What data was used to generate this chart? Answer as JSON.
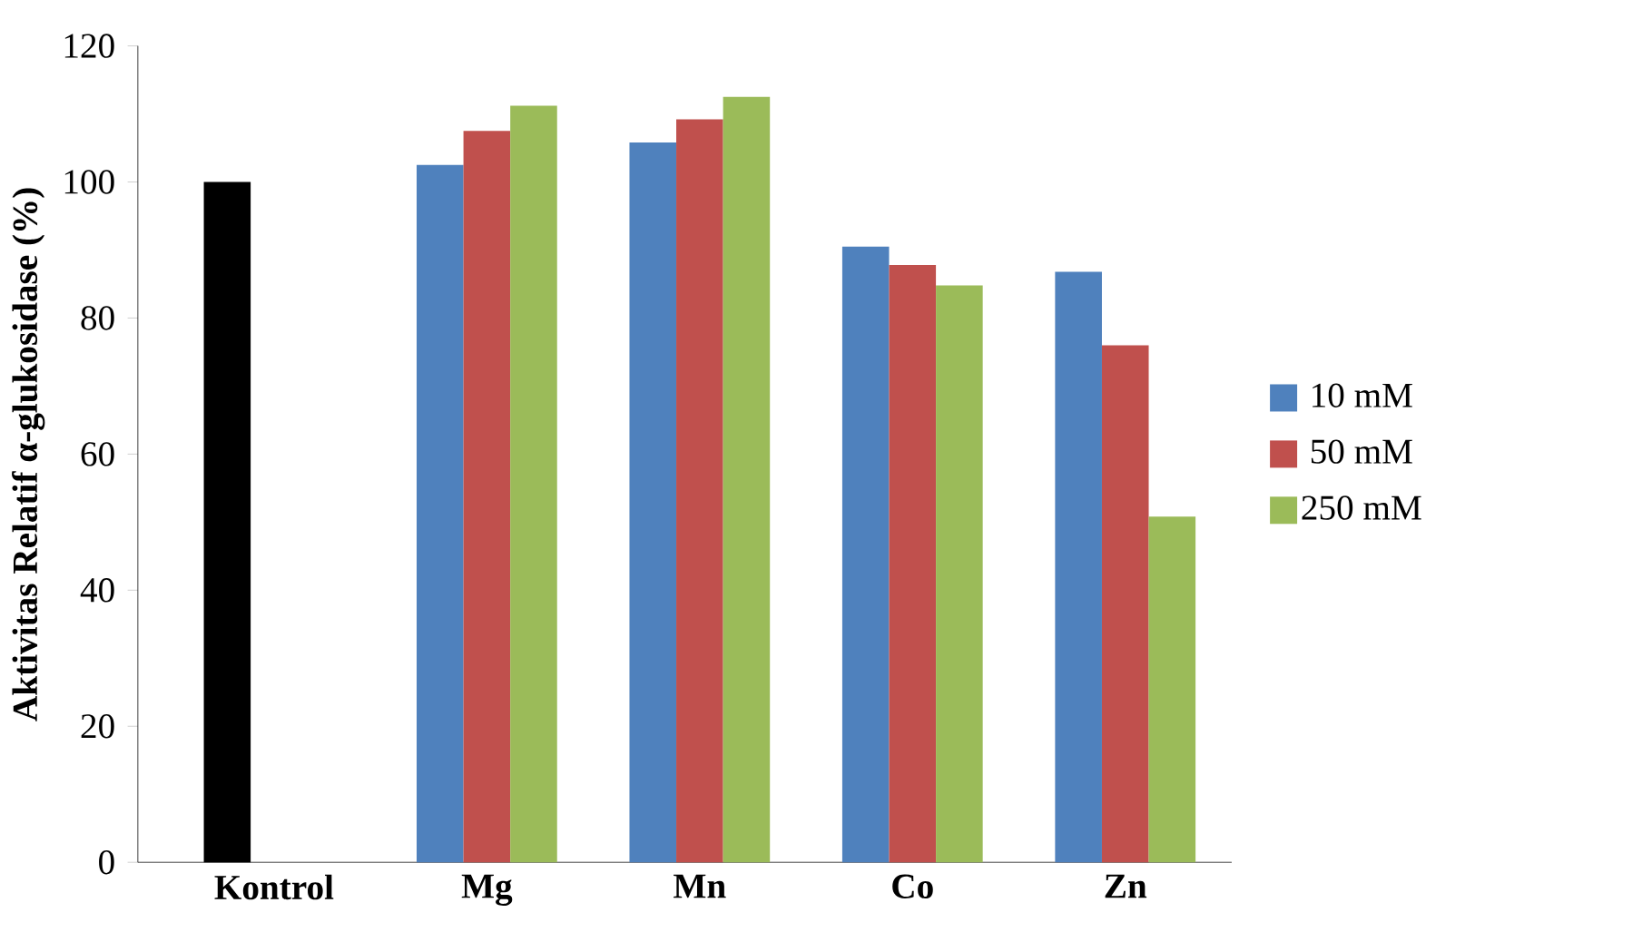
{
  "chart_data": {
    "type": "bar",
    "ylabel": "Aktivitas Relatif α-glukosidase (%)",
    "categories": [
      "Kontrol",
      "Mg",
      "Mn",
      "Co",
      "Zn"
    ],
    "series": [
      {
        "name": "10 mM",
        "color": "#4f81bd",
        "colors": [
          "#000000",
          "#4f81bd",
          "#4f81bd",
          "#4f81bd",
          "#4f81bd"
        ],
        "values": [
          100,
          102.5,
          105.8,
          90.5,
          86.8
        ]
      },
      {
        "name": "50 mM",
        "color": "#c0504d",
        "values": [
          null,
          107.5,
          109.2,
          87.8,
          76
        ]
      },
      {
        "name": "250 mM",
        "color": "#9bbb59",
        "values": [
          null,
          111.2,
          112.5,
          84.8,
          50.8
        ]
      }
    ],
    "ylim": [
      0,
      120
    ],
    "yticks": [
      0,
      20,
      40,
      60,
      80,
      100,
      120
    ],
    "legend": "right",
    "grid": false
  }
}
